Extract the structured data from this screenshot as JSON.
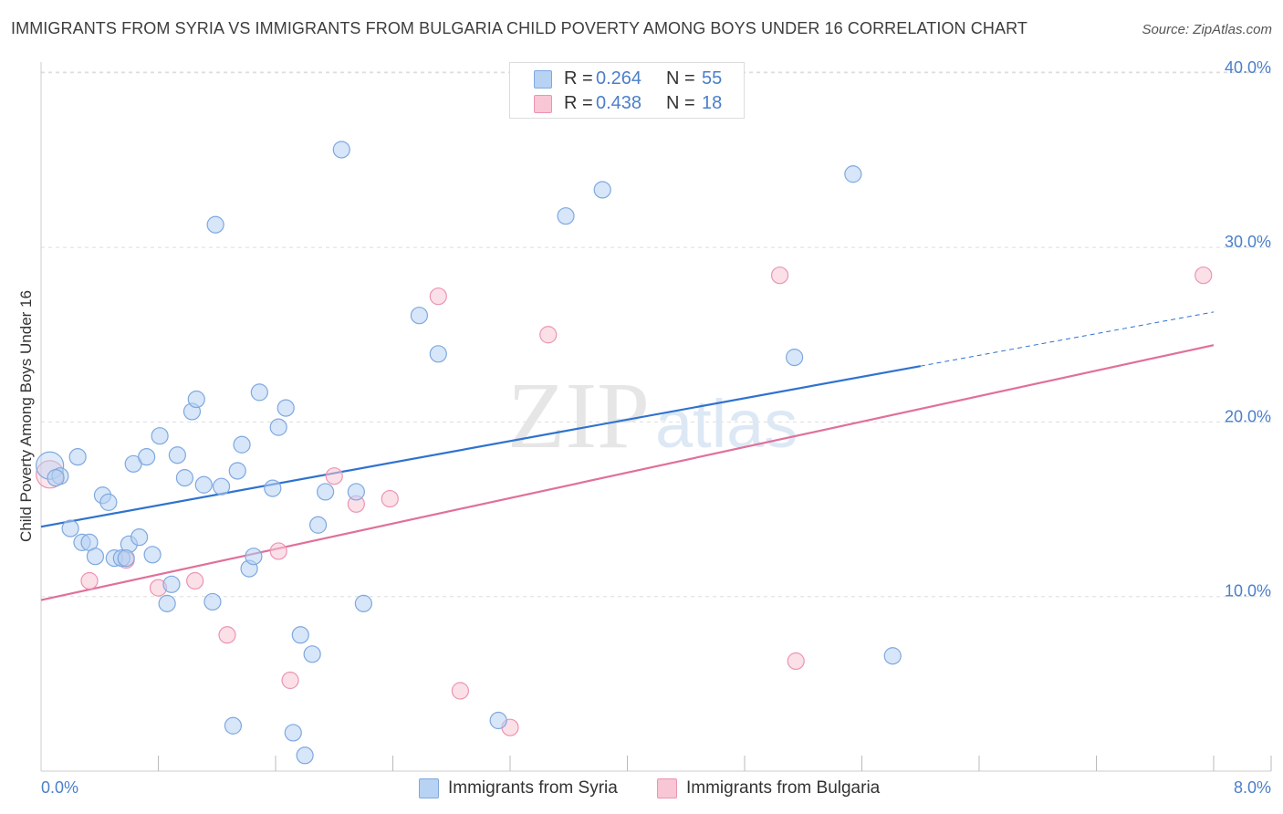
{
  "title": "IMMIGRANTS FROM SYRIA VS IMMIGRANTS FROM BULGARIA CHILD POVERTY AMONG BOYS UNDER 16 CORRELATION CHART",
  "source": "Source: ZipAtlas.com",
  "watermark": {
    "zip": "ZIP",
    "atlas": "atlas"
  },
  "legend": [
    {
      "r_label": "R =",
      "r_value": "0.264",
      "n_label": "N =",
      "n_value": "55"
    },
    {
      "r_label": "R =",
      "r_value": "0.438",
      "n_label": "N =",
      "n_value": "18"
    }
  ],
  "bottom_legend": [
    "Immigrants from Syria",
    "Immigrants from Bulgaria"
  ],
  "colors": {
    "syria_fill": "#b7d2f3",
    "syria_stroke": "#7ea8e0",
    "syria_line": "#2f72cf",
    "bulgaria_fill": "#f8c6d5",
    "bulgaria_stroke": "#ec94b1",
    "bulgaria_line": "#e0709a",
    "tick_text": "#4a7fc9",
    "grid": "#dddddd"
  },
  "chart_data": {
    "type": "scatter",
    "title": "IMMIGRANTS FROM SYRIA VS IMMIGRANTS FROM BULGARIA CHILD POVERTY AMONG BOYS UNDER 16 CORRELATION CHART",
    "xlabel": "",
    "ylabel": "Child Poverty Among Boys Under 16",
    "xlim": [
      0,
      8
    ],
    "ylim": [
      0,
      41.5
    ],
    "x_tick_labels": [
      {
        "value": 0,
        "label": "0.0%"
      },
      {
        "value": 8,
        "label": "8.0%"
      }
    ],
    "y_tick_labels": [
      {
        "value": 10,
        "label": "10.0%"
      },
      {
        "value": 20,
        "label": "20.0%"
      },
      {
        "value": 30,
        "label": "30.0%"
      },
      {
        "value": 40,
        "label": "40.0%"
      }
    ],
    "grid": true,
    "series": [
      {
        "name": "Immigrants from Syria",
        "r": 0.264,
        "n": 55,
        "trend": {
          "x0": 0.0,
          "y0": 14.0,
          "x1": 6.0,
          "y1": 23.2,
          "dash_to_x": 8.0,
          "dash_to_y": 26.3
        },
        "points": [
          {
            "x": 0.06,
            "y": 17.5,
            "big": true
          },
          {
            "x": 0.13,
            "y": 16.9
          },
          {
            "x": 0.1,
            "y": 16.8
          },
          {
            "x": 0.25,
            "y": 18.0
          },
          {
            "x": 0.2,
            "y": 13.9
          },
          {
            "x": 0.28,
            "y": 13.1
          },
          {
            "x": 0.33,
            "y": 13.1
          },
          {
            "x": 0.37,
            "y": 12.3
          },
          {
            "x": 0.42,
            "y": 15.8
          },
          {
            "x": 0.46,
            "y": 15.4
          },
          {
            "x": 0.5,
            "y": 12.2
          },
          {
            "x": 0.55,
            "y": 12.2
          },
          {
            "x": 0.6,
            "y": 13.0
          },
          {
            "x": 0.63,
            "y": 17.6
          },
          {
            "x": 0.67,
            "y": 13.4
          },
          {
            "x": 0.72,
            "y": 18.0
          },
          {
            "x": 0.76,
            "y": 12.4
          },
          {
            "x": 0.81,
            "y": 19.2
          },
          {
            "x": 0.86,
            "y": 9.6
          },
          {
            "x": 0.89,
            "y": 10.7
          },
          {
            "x": 0.93,
            "y": 18.1
          },
          {
            "x": 0.98,
            "y": 16.8
          },
          {
            "x": 1.03,
            "y": 20.6
          },
          {
            "x": 1.06,
            "y": 21.3
          },
          {
            "x": 1.11,
            "y": 16.4
          },
          {
            "x": 1.17,
            "y": 9.7
          },
          {
            "x": 1.19,
            "y": 31.3
          },
          {
            "x": 1.23,
            "y": 16.3
          },
          {
            "x": 1.31,
            "y": 2.6
          },
          {
            "x": 1.34,
            "y": 17.2
          },
          {
            "x": 1.37,
            "y": 18.7
          },
          {
            "x": 1.42,
            "y": 11.6
          },
          {
            "x": 1.45,
            "y": 12.3
          },
          {
            "x": 1.49,
            "y": 21.7
          },
          {
            "x": 1.58,
            "y": 16.2
          },
          {
            "x": 1.62,
            "y": 19.7
          },
          {
            "x": 1.67,
            "y": 20.8
          },
          {
            "x": 1.72,
            "y": 2.2
          },
          {
            "x": 1.77,
            "y": 7.8
          },
          {
            "x": 1.8,
            "y": 0.9
          },
          {
            "x": 1.85,
            "y": 6.7
          },
          {
            "x": 1.89,
            "y": 14.1
          },
          {
            "x": 1.94,
            "y": 16.0
          },
          {
            "x": 2.05,
            "y": 35.6
          },
          {
            "x": 2.15,
            "y": 16.0
          },
          {
            "x": 2.2,
            "y": 9.6
          },
          {
            "x": 2.58,
            "y": 26.1
          },
          {
            "x": 2.71,
            "y": 23.9
          },
          {
            "x": 3.12,
            "y": 2.9
          },
          {
            "x": 3.58,
            "y": 31.8
          },
          {
            "x": 3.83,
            "y": 33.3
          },
          {
            "x": 5.14,
            "y": 23.7
          },
          {
            "x": 5.54,
            "y": 34.2
          },
          {
            "x": 5.81,
            "y": 6.6
          },
          {
            "x": 0.58,
            "y": 12.2
          }
        ]
      },
      {
        "name": "Immigrants from Bulgaria",
        "r": 0.438,
        "n": 18,
        "trend": {
          "x0": 0.0,
          "y0": 9.8,
          "x1": 8.0,
          "y1": 24.4
        },
        "points": [
          {
            "x": 0.06,
            "y": 17.0,
            "big": true
          },
          {
            "x": 0.33,
            "y": 10.9
          },
          {
            "x": 0.58,
            "y": 12.1
          },
          {
            "x": 0.8,
            "y": 10.5
          },
          {
            "x": 1.05,
            "y": 10.9
          },
          {
            "x": 1.27,
            "y": 7.8
          },
          {
            "x": 1.62,
            "y": 12.6
          },
          {
            "x": 1.7,
            "y": 5.2
          },
          {
            "x": 2.0,
            "y": 16.9
          },
          {
            "x": 2.15,
            "y": 15.3
          },
          {
            "x": 2.38,
            "y": 15.6
          },
          {
            "x": 2.71,
            "y": 27.2
          },
          {
            "x": 2.86,
            "y": 4.6
          },
          {
            "x": 3.2,
            "y": 2.5
          },
          {
            "x": 3.46,
            "y": 25.0
          },
          {
            "x": 5.04,
            "y": 28.4
          },
          {
            "x": 5.15,
            "y": 6.3
          },
          {
            "x": 7.93,
            "y": 28.4
          }
        ]
      }
    ]
  }
}
